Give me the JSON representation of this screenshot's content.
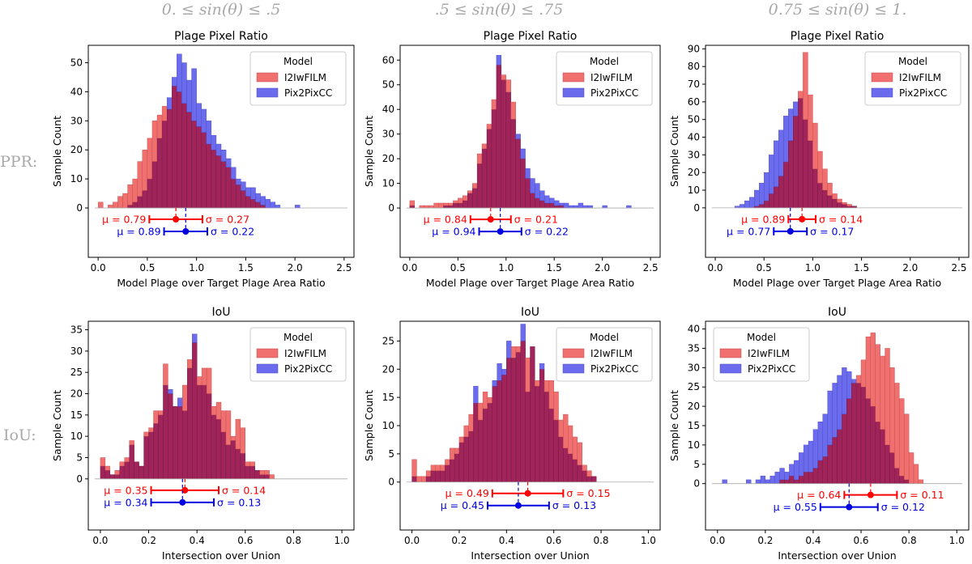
{
  "row_labels": [
    "PPR:",
    "IoU:"
  ],
  "column_titles": [
    "0. ≤ sin(θ) ≤ .5",
    ".5 ≤ sin(θ) ≤ .75",
    "0.75 ≤ sin(θ) ≤ 1."
  ],
  "colors": {
    "I2IwFILM": "#f07070",
    "Pix2PixCC": "#6b6bee",
    "overlap": "#a0245a",
    "mu_red": "#ff0000",
    "mu_blue": "#0000e0"
  },
  "legend": {
    "title": "Model",
    "entries": [
      "I2IwFILM",
      "Pix2PixCC"
    ]
  },
  "chart_data": [
    {
      "type": "bar",
      "panel": "ppr-0",
      "title": "Plage Pixel Ratio",
      "xlabel": "Model Plage over Target Plage Area Ratio",
      "ylabel": "Sample Count",
      "xlim": [
        -0.1,
        2.6
      ],
      "ylim": [
        -17,
        56
      ],
      "xticks": [
        "0.0",
        "0.5",
        "1.0",
        "1.5",
        "2.0",
        "2.5"
      ],
      "xtick_values": [
        0,
        0.5,
        1,
        1.5,
        2,
        2.5
      ],
      "yticks": [
        "0",
        "10",
        "20",
        "30",
        "40",
        "50"
      ],
      "ytick_values": [
        0,
        10,
        20,
        30,
        40,
        50
      ],
      "bin_start": 0.0,
      "bin_width": 0.05,
      "series": [
        {
          "name": "I2IwFILM",
          "values": [
            2,
            0,
            1,
            2,
            4,
            5,
            8,
            10,
            16,
            20,
            24,
            30,
            32,
            35,
            34,
            42,
            40,
            36,
            33,
            30,
            28,
            26,
            22,
            20,
            18,
            16,
            14,
            10,
            8,
            6,
            4,
            3,
            2,
            1,
            0,
            0,
            0,
            0,
            0,
            0,
            0,
            0,
            0,
            0,
            0,
            0,
            0,
            0,
            0,
            0
          ]
        },
        {
          "name": "Pix2PixCC",
          "values": [
            0,
            0,
            0,
            0,
            0,
            0,
            1,
            2,
            4,
            6,
            10,
            16,
            24,
            30,
            38,
            45,
            53,
            50,
            44,
            48,
            36,
            34,
            30,
            25,
            22,
            20,
            17,
            14,
            10,
            9,
            7,
            7,
            5,
            4,
            3,
            2,
            1,
            0,
            0,
            0,
            1,
            0,
            0,
            0,
            0,
            0,
            0,
            0,
            0,
            0
          ]
        }
      ],
      "stats": [
        {
          "name": "I2IwFILM",
          "mu": 0.79,
          "sigma": 0.27,
          "mu_label": "μ = 0.79",
          "sigma_label": "σ = 0.27"
        },
        {
          "name": "Pix2PixCC",
          "mu": 0.89,
          "sigma": 0.22,
          "mu_label": "μ = 0.89",
          "sigma_label": "σ = 0.22"
        }
      ]
    },
    {
      "type": "bar",
      "panel": "ppr-1",
      "title": "Plage Pixel Ratio",
      "xlabel": "Model Plage over Target Plage Area Ratio",
      "ylabel": "Sample Count",
      "xlim": [
        -0.1,
        2.6
      ],
      "ylim": [
        -20,
        66
      ],
      "xticks": [
        "0.0",
        "0.5",
        "1.0",
        "1.5",
        "2.0",
        "2.5"
      ],
      "xtick_values": [
        0,
        0.5,
        1,
        1.5,
        2,
        2.5
      ],
      "yticks": [
        "0",
        "10",
        "20",
        "30",
        "40",
        "50",
        "60"
      ],
      "ytick_values": [
        0,
        10,
        20,
        30,
        40,
        50,
        60
      ],
      "bin_start": 0.0,
      "bin_width": 0.05,
      "series": [
        {
          "name": "I2IwFILM",
          "values": [
            3,
            0,
            1,
            1,
            1,
            2,
            2,
            2,
            2,
            3,
            4,
            5,
            7,
            10,
            22,
            26,
            34,
            44,
            58,
            54,
            52,
            43,
            28,
            20,
            12,
            6,
            4,
            3,
            2,
            2,
            1,
            1,
            0,
            0,
            0,
            0,
            0,
            0,
            0,
            0,
            0,
            0,
            0,
            0,
            0,
            0,
            0
          ]
        },
        {
          "name": "Pix2PixCC",
          "values": [
            1,
            0,
            0,
            0,
            0,
            0,
            0,
            1,
            1,
            2,
            2,
            3,
            6,
            8,
            18,
            24,
            32,
            40,
            62,
            52,
            47,
            36,
            30,
            24,
            16,
            12,
            10,
            7,
            5,
            4,
            3,
            2,
            2,
            1,
            1,
            2,
            1,
            1,
            0,
            0,
            1,
            0,
            0,
            0,
            0,
            1,
            0
          ]
        }
      ],
      "stats": [
        {
          "name": "I2IwFILM",
          "mu": 0.84,
          "sigma": 0.21,
          "mu_label": "μ = 0.84",
          "sigma_label": "σ = 0.21"
        },
        {
          "name": "Pix2PixCC",
          "mu": 0.94,
          "sigma": 0.22,
          "mu_label": "μ = 0.94",
          "sigma_label": "σ = 0.22"
        }
      ]
    },
    {
      "type": "bar",
      "panel": "ppr-2",
      "title": "Plage Pixel Ratio",
      "xlabel": "Model Plage over Target Plage Area Ratio",
      "ylabel": "Sample Count",
      "xlim": [
        -0.1,
        2.6
      ],
      "ylim": [
        -28,
        92
      ],
      "xticks": [
        "0.0",
        "0.5",
        "1.0",
        "1.5",
        "2.0",
        "2.5"
      ],
      "xtick_values": [
        0,
        0.5,
        1,
        1.5,
        2,
        2.5
      ],
      "yticks": [
        "0",
        "10",
        "20",
        "30",
        "40",
        "50",
        "60",
        "70",
        "80",
        "90"
      ],
      "ytick_values": [
        0,
        10,
        20,
        30,
        40,
        50,
        60,
        70,
        80,
        90
      ],
      "bin_start": 0.2,
      "bin_width": 0.05,
      "series": [
        {
          "name": "I2IwFILM",
          "values": [
            0,
            0,
            0,
            0,
            1,
            2,
            4,
            8,
            12,
            18,
            26,
            38,
            52,
            66,
            88,
            64,
            48,
            32,
            22,
            14,
            8,
            5,
            3,
            2,
            1,
            0
          ]
        },
        {
          "name": "Pix2PixCC",
          "values": [
            1,
            2,
            4,
            6,
            10,
            14,
            20,
            30,
            38,
            44,
            52,
            56,
            60,
            62,
            50,
            38,
            22,
            14,
            10,
            7,
            5,
            3,
            2,
            1,
            1,
            0
          ]
        }
      ],
      "stats": [
        {
          "name": "I2IwFILM",
          "mu": 0.89,
          "sigma": 0.14,
          "mu_label": "μ = 0.89",
          "sigma_label": "σ = 0.14"
        },
        {
          "name": "Pix2PixCC",
          "mu": 0.77,
          "sigma": 0.17,
          "mu_label": "μ = 0.77",
          "sigma_label": "σ = 0.17"
        }
      ]
    },
    {
      "type": "bar",
      "panel": "iou-0",
      "title": "IoU",
      "xlabel": "Intersection over Union",
      "ylabel": "Sample Count",
      "xlim": [
        -0.05,
        1.05
      ],
      "ylim": [
        -12,
        37
      ],
      "xticks": [
        "0.0",
        "0.2",
        "0.4",
        "0.6",
        "0.8",
        "1.0"
      ],
      "xtick_values": [
        0,
        0.2,
        0.4,
        0.6,
        0.8,
        1
      ],
      "yticks": [
        "0",
        "5",
        "10",
        "15",
        "20",
        "25",
        "30",
        "35"
      ],
      "ytick_values": [
        0,
        5,
        10,
        15,
        20,
        25,
        30,
        35
      ],
      "bin_start": 0.0,
      "bin_width": 0.02,
      "series": [
        {
          "name": "I2IwFILM",
          "values": [
            5,
            3,
            1,
            2,
            4,
            5,
            9,
            4,
            3,
            11,
            12,
            16,
            16,
            27,
            20,
            17,
            17,
            22,
            28,
            32,
            24,
            26,
            26,
            17,
            18,
            16,
            16,
            10,
            14,
            12,
            4,
            4,
            2,
            2,
            2,
            1,
            0
          ]
        },
        {
          "name": "Pix2PixCC",
          "values": [
            3,
            2,
            1,
            1,
            3,
            4,
            8,
            4,
            3,
            10,
            11,
            13,
            15,
            22,
            21,
            17,
            19,
            16,
            26,
            34,
            22,
            22,
            20,
            15,
            14,
            11,
            8,
            9,
            7,
            6,
            3,
            3,
            2,
            1,
            1,
            0,
            0
          ]
        }
      ],
      "stats": [
        {
          "name": "I2IwFILM",
          "mu": 0.35,
          "sigma": 0.14,
          "mu_label": "μ = 0.35",
          "sigma_label": "σ = 0.14"
        },
        {
          "name": "Pix2PixCC",
          "mu": 0.34,
          "sigma": 0.13,
          "mu_label": "μ = 0.34",
          "sigma_label": "σ = 0.13"
        }
      ]
    },
    {
      "type": "bar",
      "panel": "iou-1",
      "title": "IoU",
      "xlabel": "Intersection over Union",
      "ylabel": "Sample Count",
      "xlim": [
        -0.05,
        1.05
      ],
      "ylim": [
        -8.5,
        28.5
      ],
      "xticks": [
        "0.0",
        "0.2",
        "0.4",
        "0.6",
        "0.8",
        "1.0"
      ],
      "xtick_values": [
        0,
        0.2,
        0.4,
        0.6,
        0.8,
        1
      ],
      "yticks": [
        "0",
        "5",
        "10",
        "15",
        "20",
        "25"
      ],
      "ytick_values": [
        0,
        5,
        10,
        15,
        20,
        25
      ],
      "bin_start": 0.0,
      "bin_width": 0.02,
      "series": [
        {
          "name": "I2IwFILM",
          "values": [
            4,
            1,
            1,
            2,
            3,
            3,
            3,
            4,
            6,
            6,
            8,
            10,
            12,
            14,
            14,
            16,
            15,
            17,
            18,
            19,
            22,
            24,
            24,
            25,
            22,
            24,
            18,
            20,
            18,
            18,
            16,
            11,
            12,
            10,
            8,
            7,
            3,
            2,
            1,
            0,
            0
          ]
        },
        {
          "name": "Pix2PixCC",
          "values": [
            1,
            0,
            0,
            1,
            2,
            2,
            2,
            3,
            4,
            5,
            7,
            8,
            9,
            17,
            11,
            13,
            14,
            18,
            21,
            20,
            25,
            22,
            23,
            28,
            16,
            24,
            17,
            21,
            16,
            13,
            11,
            8,
            6,
            5,
            4,
            3,
            2,
            1,
            1,
            0,
            0
          ]
        }
      ],
      "stats": [
        {
          "name": "I2IwFILM",
          "mu": 0.49,
          "sigma": 0.15,
          "mu_label": "μ = 0.49",
          "sigma_label": "σ = 0.15"
        },
        {
          "name": "Pix2PixCC",
          "mu": 0.45,
          "sigma": 0.13,
          "mu_label": "μ = 0.45",
          "sigma_label": "σ = 0.13"
        }
      ]
    },
    {
      "type": "bar",
      "panel": "iou-2",
      "title": "IoU",
      "xlabel": "Intersection over Union",
      "ylabel": "Sample Count",
      "xlim": [
        -0.05,
        1.05
      ],
      "ylim": [
        -12,
        42
      ],
      "xticks": [
        "0.0",
        "0.2",
        "0.4",
        "0.6",
        "0.8",
        "1.0"
      ],
      "xtick_values": [
        0,
        0.2,
        0.4,
        0.6,
        0.8,
        1
      ],
      "yticks": [
        "0",
        "5",
        "10",
        "15",
        "20",
        "25",
        "30",
        "35",
        "40"
      ],
      "ytick_values": [
        0,
        5,
        10,
        15,
        20,
        25,
        30,
        35,
        40
      ],
      "bin_start": 0.0,
      "bin_width": 0.02,
      "series": [
        {
          "name": "I2IwFILM",
          "values": [
            0,
            0,
            0,
            0,
            0,
            0,
            0,
            0,
            0,
            0,
            0,
            0,
            0,
            1,
            1,
            2,
            1,
            2,
            3,
            3,
            4,
            6,
            7,
            10,
            12,
            14,
            18,
            22,
            26,
            28,
            32,
            38,
            39,
            36,
            33,
            35,
            30,
            26,
            22,
            18,
            8,
            5,
            1,
            0
          ]
        },
        {
          "name": "Pix2PixCC",
          "values": [
            0,
            1,
            0,
            0,
            0,
            0,
            1,
            0,
            1,
            2,
            1,
            2,
            3,
            4,
            3,
            5,
            6,
            8,
            10,
            11,
            14,
            16,
            18,
            24,
            26,
            28,
            30,
            29,
            27,
            26,
            25,
            22,
            20,
            16,
            14,
            10,
            8,
            4,
            2,
            1,
            0,
            0,
            0,
            0
          ]
        }
      ],
      "stats": [
        {
          "name": "I2IwFILM",
          "mu": 0.64,
          "sigma": 0.11,
          "mu_label": "μ = 0.64",
          "sigma_label": "σ = 0.11"
        },
        {
          "name": "Pix2PixCC",
          "mu": 0.55,
          "sigma": 0.12,
          "mu_label": "μ = 0.55",
          "sigma_label": "σ = 0.12"
        }
      ]
    }
  ]
}
